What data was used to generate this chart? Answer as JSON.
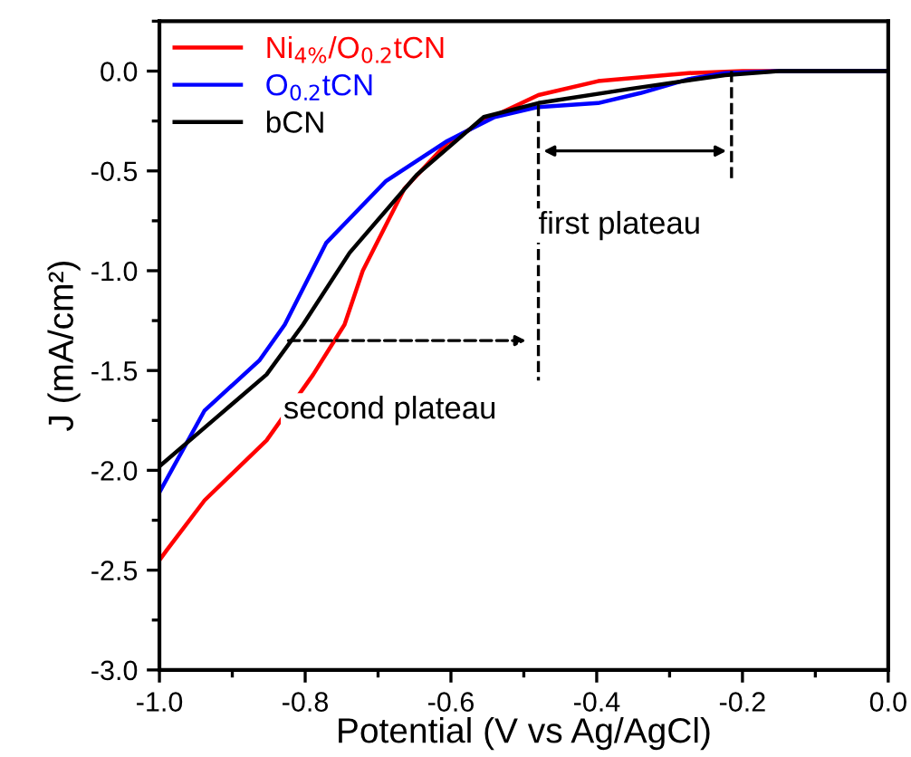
{
  "chart_data": {
    "type": "line",
    "xlabel": "Potential (V vs Ag/AgCl)",
    "ylabel": "J (mA/cm²)",
    "xlim": [
      -1.0,
      0.0
    ],
    "xticks": [
      {
        "value": -1.0,
        "label": "-1.0"
      },
      -0.8,
      -0.6,
      -0.4,
      -0.2,
      {
        "value": 0.0,
        "label": "0.0"
      }
    ],
    "ylim": [
      -3.0,
      0.25
    ],
    "yticks": [
      {
        "value": -3.0,
        "label": "-3.0"
      },
      -2.5,
      {
        "value": -2.0,
        "label": "-2.0"
      },
      -1.5,
      {
        "value": -1.0,
        "label": "-1.0"
      },
      -0.5,
      {
        "value": 0.0,
        "label": "0.0"
      }
    ],
    "grid": false,
    "legend": "top left",
    "marker": "none",
    "line_style": "solid",
    "series": [
      {
        "name": "Ni$_{4%}$/O$_{0.2}$tCN",
        "color": "#ff0000",
        "x": [
          -1.0,
          -0.99,
          -0.938,
          -0.853,
          -0.789,
          -0.746,
          -0.721,
          -0.664,
          -0.605,
          -0.555,
          -0.48,
          -0.398,
          -0.274,
          -0.2,
          0.0
        ],
        "values": [
          -2.45,
          -2.4,
          -2.15,
          -1.85,
          -1.52,
          -1.27,
          -1.0,
          -0.59,
          -0.36,
          -0.25,
          -0.12,
          -0.05,
          -0.01,
          0.0,
          0.0
        ]
      },
      {
        "name": "O$_{0.2}$tCN",
        "color": "#0000ff",
        "x": [
          -1.0,
          -0.938,
          -0.863,
          -0.828,
          -0.771,
          -0.689,
          -0.605,
          -0.54,
          -0.48,
          -0.398,
          -0.34,
          -0.274,
          -0.224,
          -0.15,
          0.0
        ],
        "values": [
          -2.11,
          -1.7,
          -1.45,
          -1.27,
          -0.86,
          -0.55,
          -0.35,
          -0.23,
          -0.18,
          -0.16,
          -0.11,
          -0.04,
          -0.01,
          0.0,
          0.0
        ]
      },
      {
        "name": "bCN",
        "color": "#000000",
        "x": [
          -1.0,
          -0.92,
          -0.853,
          -0.803,
          -0.739,
          -0.647,
          -0.555,
          -0.48,
          -0.356,
          -0.224,
          -0.15,
          0.0
        ],
        "values": [
          -1.98,
          -1.73,
          -1.52,
          -1.27,
          -0.91,
          -0.52,
          -0.23,
          -0.16,
          -0.09,
          -0.02,
          0.0,
          0.0
        ]
      }
    ],
    "annotations": [
      "first plateau",
      "second plateau"
    ]
  }
}
